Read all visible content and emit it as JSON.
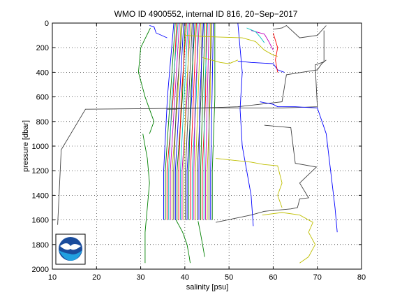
{
  "chart_data": {
    "type": "line",
    "title": "WMO ID 4900552, internal ID 816, 20−Sep−2017",
    "xlabel": "salinity [psu]",
    "ylabel": "pressure [dbar]",
    "xlim": [
      10,
      80
    ],
    "ylim": [
      0,
      2000
    ],
    "y_reversed": true,
    "grid": true,
    "grid_style": "dotted",
    "x_ticks": [
      "10",
      "20",
      "30",
      "40",
      "50",
      "60",
      "70",
      "80"
    ],
    "y_ticks": [
      "0",
      "200",
      "400",
      "600",
      "800",
      "1000",
      "1200",
      "1400",
      "1600",
      "1800",
      "2000"
    ],
    "logo": "noaa-logo",
    "series_colors": [
      "#0000ff",
      "#008000",
      "#ff0000",
      "#00bfbf",
      "#bf00bf",
      "#bfbf00",
      "#404040"
    ],
    "bundle": {
      "count": 30,
      "bottom_pressure": 1600,
      "bottom_salinity_start": 35.2,
      "bottom_salinity_step": 0.38,
      "top_pressure": 0,
      "top_salinity_start": 37.5,
      "top_salinity_step": 0.32
    },
    "series": [
      {
        "color": "#404040",
        "x": [
          38.5,
          38.2,
          36,
          52,
          62,
          63,
          70,
          71,
          72
        ],
        "y": [
          690,
          700,
          700,
          680,
          640,
          420,
          380,
          330,
          300
        ]
      },
      {
        "color": "#404040",
        "x": [
          11.2,
          12,
          17.5,
          33,
          47,
          62,
          70,
          69.5,
          71.5,
          71.5
        ],
        "y": [
          1640,
          1030,
          700,
          695,
          690,
          690,
          680,
          340,
          315,
          60
        ]
      },
      {
        "color": "#404040",
        "x": [
          58,
          64,
          65,
          69.8,
          66,
          68,
          66,
          65.5,
          64,
          58,
          55,
          47
        ],
        "y": [
          830,
          850,
          1140,
          1170,
          1300,
          1420,
          1430,
          1500,
          1510,
          1530,
          1560,
          1620
        ]
      },
      {
        "color": "#404040",
        "x": [
          60,
          62,
          63,
          66,
          70,
          72
        ],
        "y": [
          50,
          40,
          20,
          120,
          100,
          20
        ]
      },
      {
        "color": "#0000ff",
        "x": [
          57,
          60,
          61,
          65,
          70,
          72,
          73,
          74,
          74.5
        ],
        "y": [
          640,
          660,
          680,
          680,
          690,
          900,
          1200,
          1500,
          1700
        ]
      },
      {
        "color": "#0000ff",
        "x": [
          52,
          53,
          52.5,
          53,
          54,
          55,
          55.5
        ],
        "y": [
          0,
          400,
          700,
          1000,
          1200,
          1400,
          1650
        ]
      },
      {
        "color": "#0000ff",
        "x": [
          52,
          55,
          60,
          61,
          62.5
        ],
        "y": [
          310,
          320,
          330,
          380,
          400
        ]
      },
      {
        "color": "#0000ff",
        "x": [
          32,
          33,
          33.5,
          36
        ],
        "y": [
          20,
          30,
          80,
          120
        ]
      },
      {
        "color": "#008000",
        "x": [
          32.2,
          30,
          29.5,
          31,
          32,
          33,
          32
        ],
        "y": [
          40,
          200,
          400,
          600,
          700,
          800,
          900
        ]
      },
      {
        "color": "#008000",
        "x": [
          30.5,
          31.5,
          32,
          31.5,
          31,
          31
        ],
        "y": [
          900,
          1100,
          1300,
          1500,
          1700,
          1950
        ]
      },
      {
        "color": "#008000",
        "x": [
          38,
          39.5,
          40.5,
          41,
          41.2
        ],
        "y": [
          1600,
          1700,
          1800,
          1900,
          1950
        ]
      },
      {
        "color": "#008000",
        "x": [
          43,
          43.5,
          44,
          44.5
        ],
        "y": [
          1610,
          1700,
          1800,
          1900
        ]
      },
      {
        "color": "#bfbf00",
        "x": [
          40,
          45,
          53,
          56,
          58,
          60,
          61
        ],
        "y": [
          100,
          110,
          120,
          150,
          220,
          260,
          270
        ]
      },
      {
        "color": "#bfbf00",
        "x": [
          47,
          55,
          58,
          61,
          62,
          61,
          62
        ],
        "y": [
          1100,
          1130,
          1150,
          1160,
          1300,
          1400,
          1500
        ]
      },
      {
        "color": "#bfbf00",
        "x": [
          57.5,
          62,
          66,
          69,
          68,
          69.5,
          68,
          66
        ],
        "y": [
          1560,
          1540,
          1560,
          1620,
          1700,
          1800,
          1900,
          1950
        ]
      },
      {
        "color": "#bfbf00",
        "x": [
          44,
          48,
          50,
          52
        ],
        "y": [
          280,
          320,
          330,
          300
        ]
      },
      {
        "color": "#ff0000",
        "x": [
          60,
          61,
          60.5,
          61
        ],
        "y": [
          80,
          200,
          300,
          400
        ]
      },
      {
        "color": "#bf00bf",
        "x": [
          55,
          58,
          59,
          60
        ],
        "y": [
          60,
          90,
          150,
          220
        ]
      },
      {
        "color": "#00bfbf",
        "x": [
          54,
          56,
          57,
          58
        ],
        "y": [
          40,
          70,
          110,
          160
        ]
      }
    ]
  }
}
